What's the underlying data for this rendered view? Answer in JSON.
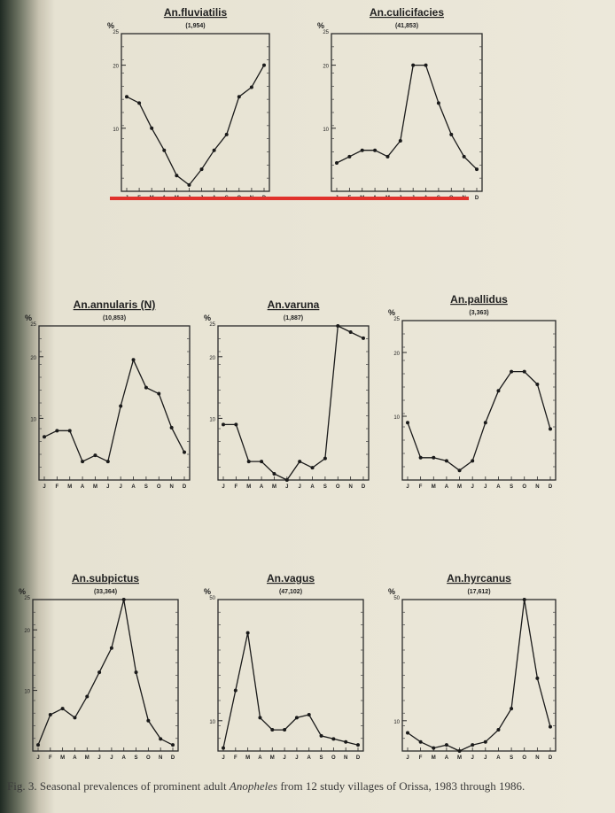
{
  "months": [
    "J",
    "F",
    "M",
    "A",
    "M",
    "J",
    "J",
    "A",
    "S",
    "O",
    "N",
    "D"
  ],
  "caption": {
    "prefix": "Fig. 3. Seasonal prevalences of prominent adult ",
    "genus": "Anopheles",
    "suffix": " from 12 study villages of Orissa, 1983 through 1986."
  },
  "chart_data": [
    {
      "type": "line",
      "title": "An.fluviatilis",
      "subtitle": "(1,954)",
      "ylabel": "%",
      "ylim": [
        0,
        25
      ],
      "yticks": [
        10,
        20,
        25
      ],
      "xlabel": "",
      "categories": [
        "J",
        "F",
        "M",
        "A",
        "M",
        "J",
        "J",
        "A",
        "S",
        "O",
        "N",
        "D"
      ],
      "values": [
        15,
        14,
        10,
        6.5,
        2.5,
        1,
        3.5,
        6.5,
        9,
        15,
        16.5,
        20
      ]
    },
    {
      "type": "line",
      "title": "An.culicifacies",
      "subtitle": "(41,853)",
      "ylabel": "%",
      "ylim": [
        0,
        25
      ],
      "yticks": [
        10,
        20,
        25
      ],
      "xlabel": "",
      "categories": [
        "J",
        "F",
        "M",
        "A",
        "M",
        "J",
        "J",
        "A",
        "S",
        "O",
        "N",
        "D"
      ],
      "values": [
        4.5,
        5.5,
        6.5,
        6.5,
        5.5,
        8,
        20,
        20,
        14,
        9,
        5.5,
        3.5
      ]
    },
    {
      "type": "line",
      "title": "An.annularis (N)",
      "subtitle": "(10,853)",
      "ylabel": "%",
      "ylim": [
        0,
        25
      ],
      "yticks": [
        10,
        20,
        25
      ],
      "xlabel": "",
      "categories": [
        "J",
        "F",
        "M",
        "A",
        "M",
        "J",
        "J",
        "A",
        "S",
        "O",
        "N",
        "D"
      ],
      "values": [
        7,
        8,
        8,
        3,
        4,
        3,
        12,
        19.5,
        15,
        14,
        8.5,
        4.5
      ]
    },
    {
      "type": "line",
      "title": "An.varuna",
      "subtitle": "(1,887)",
      "ylabel": "%",
      "ylim": [
        0,
        25
      ],
      "yticks": [
        10,
        20,
        25
      ],
      "xlabel": "",
      "categories": [
        "J",
        "F",
        "M",
        "A",
        "M",
        "J",
        "J",
        "A",
        "S",
        "O",
        "N",
        "D"
      ],
      "values": [
        9,
        9,
        3,
        3,
        1,
        0,
        3,
        2,
        3.5,
        25,
        24,
        23
      ]
    },
    {
      "type": "line",
      "title": "An.pallidus",
      "subtitle": "(3,363)",
      "ylabel": "%",
      "ylim": [
        0,
        25
      ],
      "yticks": [
        10,
        20,
        25
      ],
      "xlabel": "",
      "categories": [
        "J",
        "F",
        "M",
        "A",
        "M",
        "J",
        "J",
        "A",
        "S",
        "O",
        "N",
        "D"
      ],
      "values": [
        9,
        3.5,
        3.5,
        3,
        1.5,
        3,
        9,
        14,
        17,
        17,
        15,
        8
      ]
    },
    {
      "type": "line",
      "title": "An.subpictus",
      "subtitle": "(33,364)",
      "ylabel": "%",
      "ylim": [
        0,
        25
      ],
      "yticks": [
        10,
        20,
        25
      ],
      "xlabel": "",
      "categories": [
        "J",
        "F",
        "M",
        "A",
        "M",
        "J",
        "J",
        "A",
        "S",
        "O",
        "N",
        "D"
      ],
      "values": [
        1,
        6,
        7,
        5.5,
        9,
        13,
        17,
        25,
        13,
        5,
        2,
        1
      ]
    },
    {
      "type": "line",
      "title": "An.vagus",
      "subtitle": "(47,102)",
      "ylabel": "%",
      "ylim": [
        0,
        50
      ],
      "yticks": [
        10,
        50
      ],
      "xlabel": "",
      "categories": [
        "J",
        "F",
        "M",
        "A",
        "M",
        "J",
        "J",
        "A",
        "S",
        "O",
        "N",
        "D"
      ],
      "values": [
        1,
        20,
        39,
        11,
        7,
        7,
        11,
        12,
        5,
        4,
        3,
        2
      ]
    },
    {
      "type": "line",
      "title": "An.hyrcanus",
      "subtitle": "(17,612)",
      "ylabel": "%",
      "ylim": [
        0,
        50
      ],
      "yticks": [
        10,
        50
      ],
      "xlabel": "",
      "categories": [
        "J",
        "F",
        "M",
        "A",
        "M",
        "J",
        "J",
        "A",
        "S",
        "O",
        "N",
        "D"
      ],
      "values": [
        6,
        3,
        1,
        2,
        0,
        2,
        3,
        7,
        14,
        50,
        24,
        8
      ]
    }
  ]
}
